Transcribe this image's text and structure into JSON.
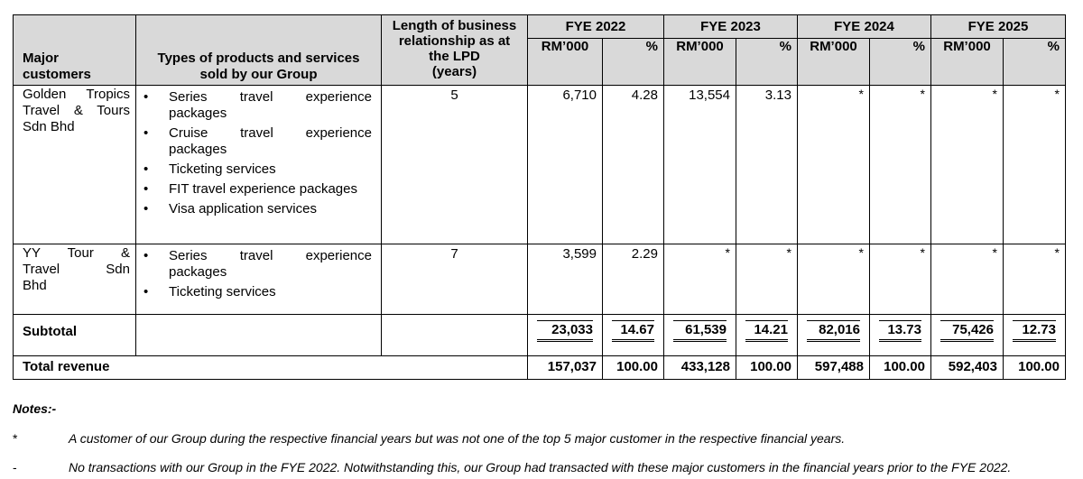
{
  "header": {
    "major_customers": [
      "Major",
      "customers"
    ],
    "types": [
      "Types of products and services",
      "sold by our Group"
    ],
    "length": [
      "Length of business",
      "relationship as at",
      "the LPD",
      "(years)"
    ],
    "years": [
      "FYE 2022",
      "FYE 2023",
      "FYE 2024",
      "FYE 2025"
    ],
    "rm_label": "RM’000",
    "pct_label": "%"
  },
  "customers": [
    {
      "name_lines": [
        "Golden Tropics",
        "Travel & Tours",
        "Sdn Bhd"
      ],
      "services": [
        {
          "line1": "Series travel experience",
          "line2": "packages"
        },
        {
          "line1": "Cruise travel experience",
          "line2": "packages"
        },
        {
          "line1": "Ticketing services",
          "line2": ""
        },
        {
          "line1": "FIT travel experience packages",
          "line2": ""
        },
        {
          "line1": "Visa application services",
          "line2": ""
        }
      ],
      "years": "5",
      "values": [
        "6,710",
        "4.28",
        "13,554",
        "3.13",
        "*",
        "*",
        "*",
        "*"
      ]
    },
    {
      "name_lines": [
        "YY Tour &",
        "Travel Sdn",
        "Bhd"
      ],
      "services": [
        {
          "line1": "Series travel experience",
          "line2": "packages"
        },
        {
          "line1": "Ticketing services",
          "line2": ""
        }
      ],
      "years": "7",
      "values": [
        "3,599",
        "2.29",
        "*",
        "*",
        "*",
        "*",
        "*",
        "*"
      ]
    }
  ],
  "subtotal": {
    "label": "Subtotal",
    "values": [
      "23,033",
      "14.67",
      "61,539",
      "14.21",
      "82,016",
      "13.73",
      "75,426",
      "12.73"
    ]
  },
  "total": {
    "label": "Total revenue",
    "values": [
      "157,037",
      "100.00",
      "433,128",
      "100.00",
      "597,488",
      "100.00",
      "592,403",
      "100.00"
    ]
  },
  "bullet": "•",
  "notes": {
    "title": "Notes:-",
    "items": [
      {
        "symbol": "*",
        "text": "A customer of our Group during the respective financial years but was not one of the top 5 major customer in the respective financial years."
      },
      {
        "symbol": "-",
        "text": "No transactions with our Group in the FYE 2022. Notwithstanding this, our Group had transacted with these major customers in the financial years prior to the FYE 2022."
      }
    ]
  }
}
